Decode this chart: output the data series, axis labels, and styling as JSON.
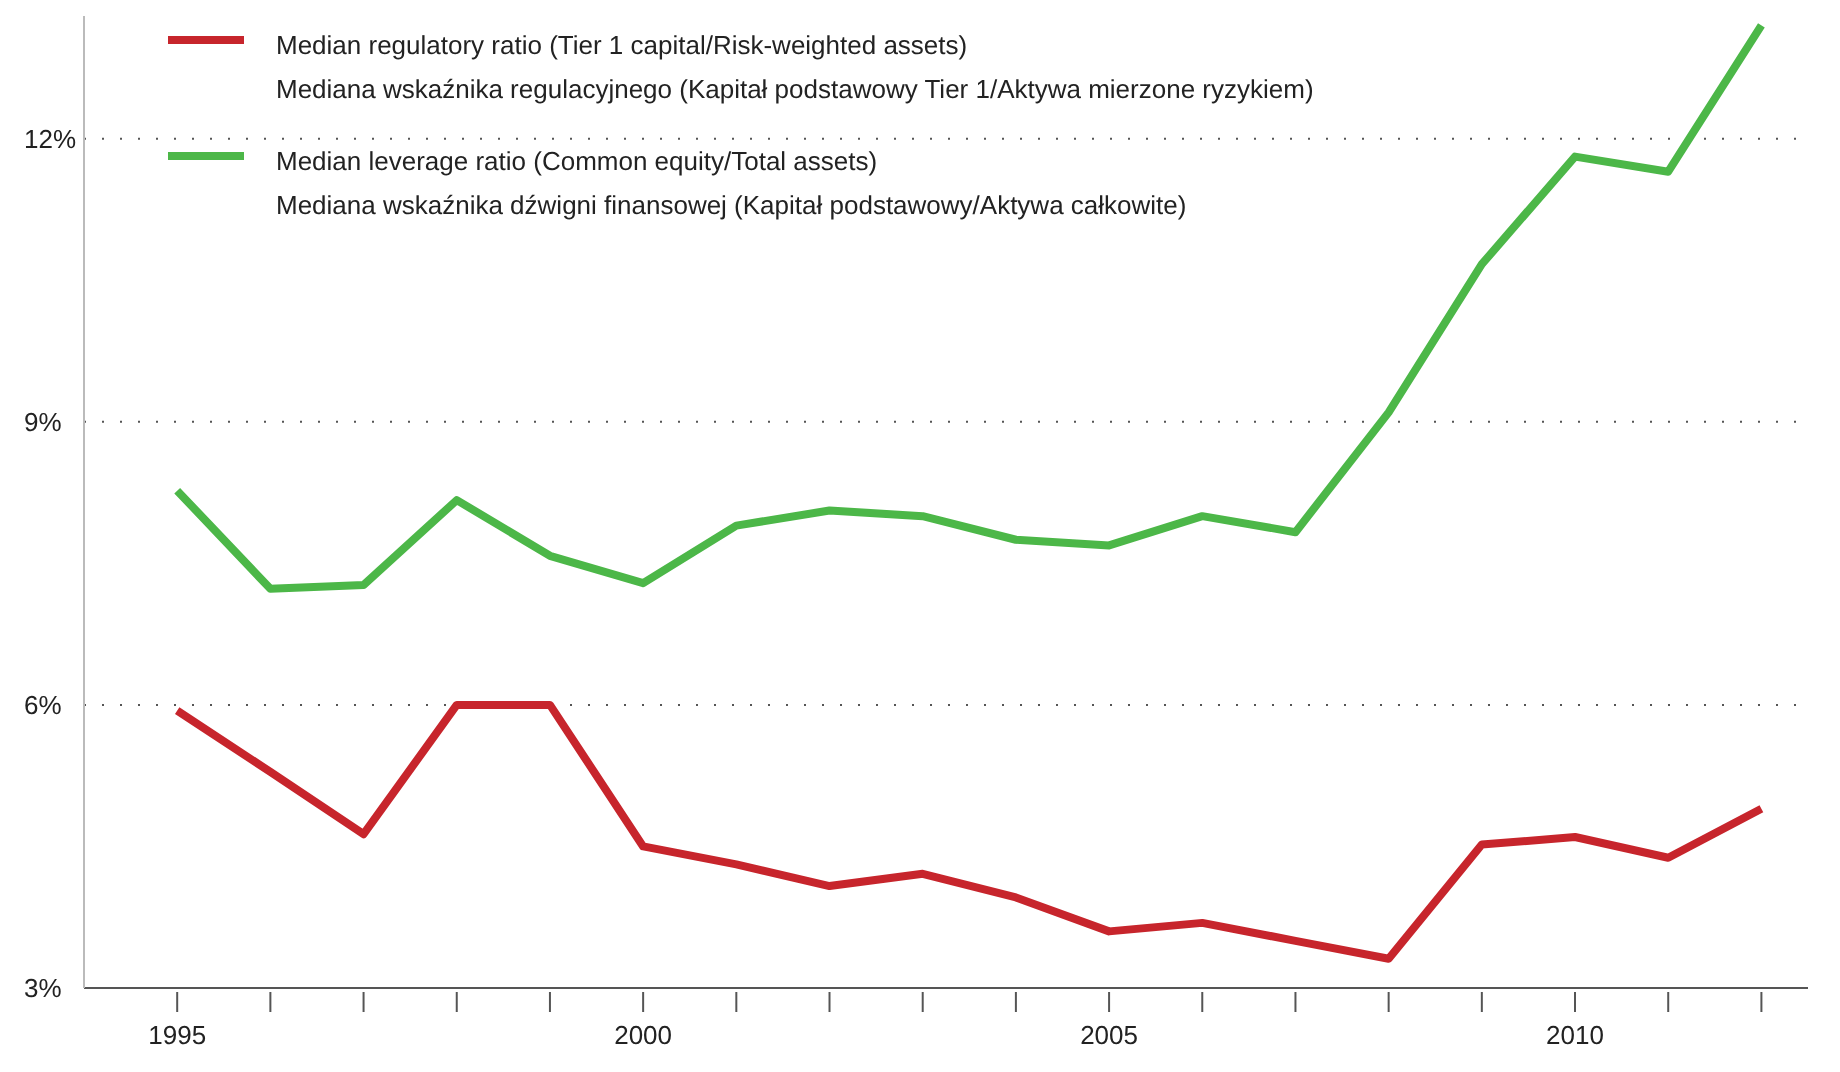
{
  "chart_data": {
    "type": "line",
    "x": [
      1995,
      1996,
      1997,
      1998,
      1999,
      2000,
      2001,
      2002,
      2003,
      2004,
      2005,
      2006,
      2007,
      2008,
      2009,
      2010,
      2011,
      2012
    ],
    "series": [
      {
        "name": "Median regulatory ratio (Tier 1 capital/Risk-weighted assets)\nMediana wskaźnika regulacyjnego (Kapitał podstawowy Tier 1/Aktywa mierzone ryzykiem)",
        "color": "#c7252c",
        "values": [
          5.94,
          5.29,
          4.63,
          6.0,
          6.0,
          4.5,
          4.31,
          4.08,
          4.21,
          3.96,
          3.6,
          3.69,
          3.5,
          3.31,
          4.52,
          4.6,
          4.38,
          4.9
        ]
      },
      {
        "name": "Median leverage ratio (Common equity/Total assets)\nMediana wskaźnika dźwigni finansowej (Kapitał podstawowy/Aktywa całkowite)",
        "color": "#4cb748",
        "values": [
          8.27,
          7.23,
          7.27,
          8.17,
          7.58,
          7.29,
          7.9,
          8.06,
          8.0,
          7.75,
          7.69,
          8.0,
          7.83,
          9.1,
          10.67,
          11.81,
          11.65,
          13.2
        ]
      }
    ],
    "xlim": [
      1994,
      2012.5
    ],
    "xticks": [
      1995,
      {
        "value": 1996,
        "label": null
      },
      {
        "value": 1997,
        "label": null
      },
      {
        "value": 1998,
        "label": null
      },
      {
        "value": 1999,
        "label": null
      },
      2000,
      {
        "value": 2001,
        "label": null
      },
      {
        "value": 2002,
        "label": null
      },
      {
        "value": 2003,
        "label": null
      },
      {
        "value": 2004,
        "label": null
      },
      2005,
      {
        "value": 2006,
        "label": null
      },
      {
        "value": 2007,
        "label": null
      },
      {
        "value": 2008,
        "label": null
      },
      {
        "value": 2009,
        "label": null
      },
      2010,
      {
        "value": 2011,
        "label": null
      },
      {
        "value": 2012,
        "label": null
      }
    ],
    "ylim": [
      3,
      13.3
    ],
    "yticks": [
      {
        "value": 3,
        "label": "3%"
      },
      {
        "value": 6,
        "label": "6%"
      },
      {
        "value": 9,
        "label": "9%"
      },
      {
        "value": 12,
        "label": "12%"
      }
    ],
    "grid": "y",
    "legend": "top left",
    "marker": "none",
    "line_style": "solid"
  }
}
